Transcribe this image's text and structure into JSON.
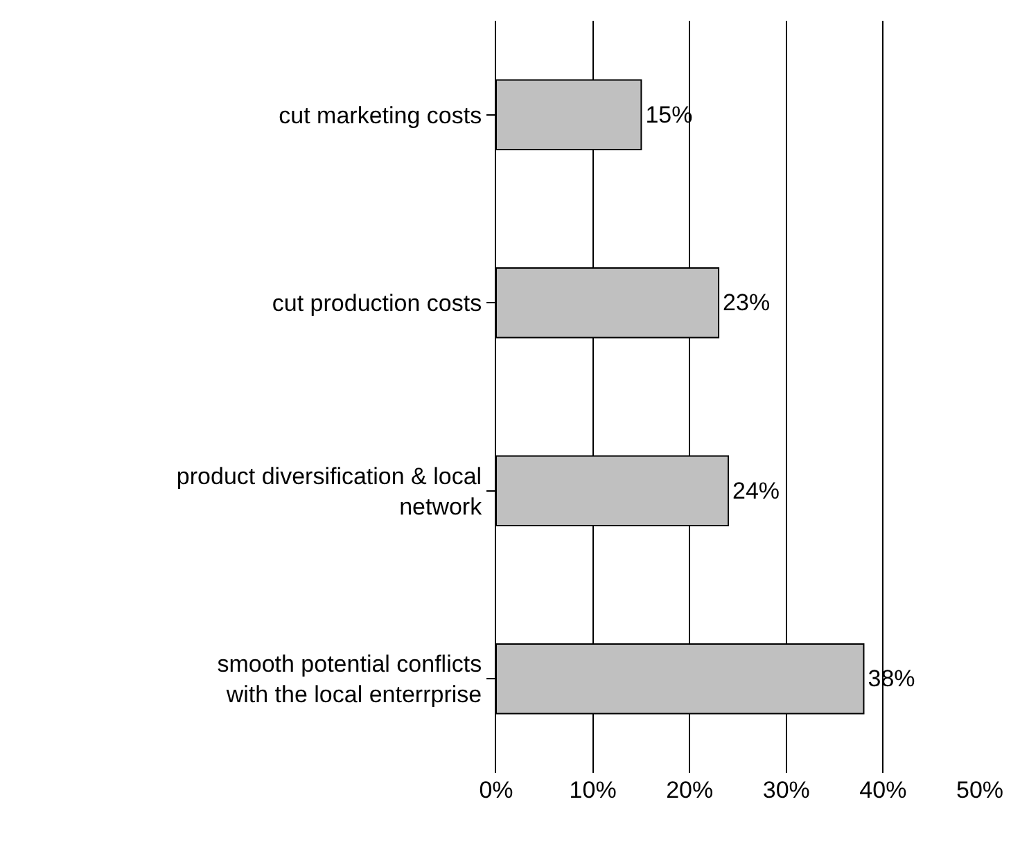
{
  "chart_data": {
    "type": "bar",
    "orientation": "horizontal",
    "categories": [
      "cut marketing costs",
      "cut production costs",
      "product diversification & local\nnetwork",
      "smooth potential conflicts\nwith the local enterrprise"
    ],
    "values": [
      15,
      23,
      24,
      38
    ],
    "value_labels": [
      "15%",
      "23%",
      "24%",
      "38%"
    ],
    "color": "#c0c0c0",
    "xlim": [
      0,
      50
    ],
    "xticks": [
      {
        "value": 0,
        "label": "0%"
      },
      {
        "value": 10,
        "label": "10%"
      },
      {
        "value": 20,
        "label": "20%"
      },
      {
        "value": 30,
        "label": "30%"
      },
      {
        "value": 40,
        "label": "40%"
      },
      {
        "value": 50,
        "label": "50%"
      }
    ],
    "grid": "x",
    "legend": false
  }
}
